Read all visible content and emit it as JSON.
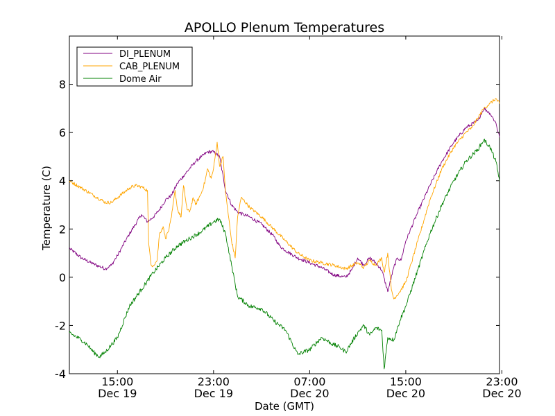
{
  "chart_data": {
    "type": "line",
    "title": "APOLLO Plenum Temperatures",
    "xlabel": "Date (GMT)",
    "ylabel": "Temperature (C)",
    "ylim": [
      -4,
      10
    ],
    "xlim_hours": [
      11.0,
      46.8
    ],
    "yticks": [
      -4,
      -2,
      0,
      2,
      4,
      6,
      8
    ],
    "xticks": [
      {
        "hour": 15,
        "time": "15:00",
        "date": "Dec 19"
      },
      {
        "hour": 23,
        "time": "23:00",
        "date": "Dec 19"
      },
      {
        "hour": 31,
        "time": "07:00",
        "date": "Dec 20"
      },
      {
        "hour": 39,
        "time": "15:00",
        "date": "Dec 20"
      },
      {
        "hour": 47,
        "time": "23:00",
        "date": "Dec 20"
      }
    ],
    "legend_position": "top-left",
    "series": [
      {
        "name": "DI_PLENUM",
        "color": "#800080",
        "x": [
          11.0,
          12.0,
          13.0,
          13.5,
          14.0,
          14.5,
          15.0,
          16.0,
          17.0,
          17.5,
          18.0,
          18.5,
          19.0,
          19.5,
          20.0,
          20.5,
          21.0,
          21.5,
          22.0,
          22.5,
          23.0,
          23.5,
          24.0,
          24.5,
          25.0,
          25.5,
          26.0,
          27.0,
          28.0,
          28.5,
          29.0,
          30.0,
          31.0,
          32.0,
          33.0,
          34.0,
          34.5,
          35.0,
          35.5,
          36.0,
          36.5,
          37.0,
          37.5,
          38.0,
          38.3,
          38.6,
          39.0,
          40.0,
          41.0,
          42.0,
          43.0,
          44.0,
          45.0,
          45.5,
          46.0,
          46.5,
          46.8
        ],
        "values": [
          1.2,
          0.8,
          0.55,
          0.45,
          0.35,
          0.5,
          0.9,
          1.8,
          2.6,
          2.3,
          2.5,
          2.8,
          3.2,
          3.4,
          3.9,
          4.2,
          4.5,
          4.8,
          5.0,
          5.2,
          5.2,
          5.0,
          3.6,
          3.0,
          2.7,
          2.6,
          2.5,
          2.2,
          1.7,
          1.3,
          1.1,
          0.8,
          0.6,
          0.4,
          0.1,
          0.0,
          0.3,
          0.8,
          0.5,
          0.8,
          0.6,
          0.3,
          -0.6,
          0.4,
          0.8,
          0.7,
          1.5,
          2.7,
          3.8,
          4.8,
          5.6,
          6.2,
          6.5,
          7.0,
          6.8,
          6.4,
          5.8
        ]
      },
      {
        "name": "CAB_PLENUM",
        "color": "#ffa500",
        "x": [
          11.0,
          12.0,
          13.0,
          14.0,
          14.5,
          15.0,
          16.0,
          16.5,
          17.0,
          17.5,
          17.6,
          17.8,
          18.0,
          18.3,
          18.5,
          18.8,
          19.0,
          19.3,
          19.5,
          19.8,
          20.0,
          20.3,
          20.5,
          20.8,
          21.0,
          21.3,
          21.5,
          22.0,
          22.3,
          22.5,
          22.8,
          23.0,
          23.3,
          23.5,
          23.8,
          24.0,
          24.5,
          24.8,
          25.0,
          25.3,
          25.5,
          26.0,
          27.0,
          28.0,
          29.0,
          30.0,
          31.0,
          32.0,
          33.0,
          34.0,
          35.0,
          35.5,
          36.0,
          36.5,
          37.0,
          37.2,
          37.5,
          37.8,
          38.0,
          38.5,
          39.0,
          40.0,
          41.0,
          42.0,
          43.0,
          44.0,
          44.5,
          45.0,
          45.5,
          46.0,
          46.5,
          46.8
        ],
        "values": [
          4.0,
          3.7,
          3.4,
          3.1,
          3.1,
          3.3,
          3.7,
          3.8,
          3.75,
          3.6,
          1.4,
          0.5,
          0.5,
          0.7,
          1.8,
          2.1,
          1.6,
          2.0,
          2.5,
          3.6,
          2.8,
          2.5,
          3.8,
          2.8,
          2.7,
          3.3,
          3.0,
          3.5,
          4.0,
          4.5,
          4.1,
          4.5,
          5.6,
          4.6,
          5.0,
          3.5,
          1.5,
          0.8,
          2.5,
          3.3,
          3.2,
          2.9,
          2.5,
          2.0,
          1.5,
          1.0,
          0.7,
          0.6,
          0.5,
          0.35,
          0.6,
          0.4,
          0.7,
          0.5,
          0.8,
          0.2,
          1.0,
          -0.5,
          -0.9,
          -0.6,
          -0.2,
          1.5,
          3.2,
          4.5,
          5.4,
          6.0,
          6.2,
          6.6,
          7.0,
          7.2,
          7.4,
          7.2
        ]
      },
      {
        "name": "Dome Air",
        "color": "#008000",
        "x": [
          11.0,
          12.0,
          12.5,
          13.0,
          13.5,
          14.0,
          14.5,
          15.0,
          16.0,
          17.0,
          18.0,
          19.0,
          20.0,
          21.0,
          22.0,
          23.0,
          23.5,
          24.0,
          24.5,
          25.0,
          26.0,
          27.0,
          28.0,
          29.0,
          30.0,
          31.0,
          32.0,
          33.0,
          33.5,
          34.0,
          35.0,
          35.5,
          36.0,
          36.5,
          37.0,
          37.2,
          37.5,
          38.0,
          38.5,
          39.0,
          40.0,
          41.0,
          42.0,
          43.0,
          44.0,
          45.0,
          45.5,
          46.0,
          46.5,
          46.8
        ],
        "values": [
          -2.3,
          -2.6,
          -2.8,
          -3.1,
          -3.3,
          -3.1,
          -2.8,
          -2.5,
          -1.2,
          -0.5,
          0.2,
          0.8,
          1.3,
          1.6,
          1.9,
          2.3,
          2.4,
          1.8,
          0.5,
          -0.8,
          -1.2,
          -1.3,
          -1.8,
          -2.2,
          -3.2,
          -3.0,
          -2.5,
          -2.8,
          -2.9,
          -3.1,
          -2.3,
          -2.0,
          -2.4,
          -2.1,
          -2.2,
          -3.8,
          -2.5,
          -2.6,
          -1.8,
          -1.2,
          0.3,
          1.8,
          3.0,
          4.0,
          4.8,
          5.3,
          5.7,
          5.4,
          4.8,
          4.0
        ]
      }
    ]
  }
}
